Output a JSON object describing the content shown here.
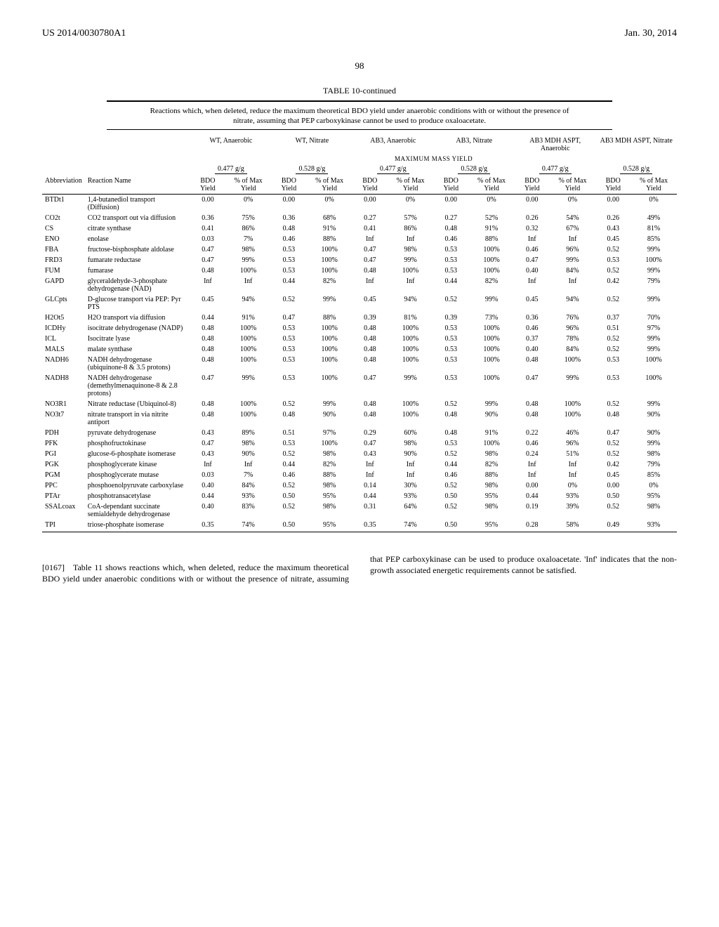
{
  "header": {
    "left": "US 2014/0030780A1",
    "right": "Jan. 30, 2014"
  },
  "page_number": "98",
  "table": {
    "title": "TABLE 10-continued",
    "caption": "Reactions which, when deleted, reduce the maximum theoretical BDO yield under anaerobic conditions with or without the presence of nitrate, assuming that PEP carboxykinase cannot be used to produce oxaloacetate.",
    "condition_groups": [
      "WT, Anaerobic",
      "WT, Nitrate",
      "AB3, Anaerobic",
      "AB3, Nitrate",
      "AB3 MDH ASPT, Anaerobic",
      "AB3 MDH ASPT, Nitrate"
    ],
    "mmy_label": "MAXIMUM MASS YIELD",
    "mmy_values": [
      "0.477 g/g",
      "0.528 g/g",
      "0.477 g/g",
      "0.528 g/g",
      "0.477 g/g",
      "0.528 g/g"
    ],
    "col_pair": [
      "BDO Yield",
      "% of Max Yield"
    ],
    "left_headers": [
      "Abbreviation",
      "Reaction Name"
    ],
    "rows": [
      {
        "abbr": "BTDt1",
        "name": "1,4-butanediol transport (Diffusion)",
        "v": [
          "0.00",
          "0%",
          "0.00",
          "0%",
          "0.00",
          "0%",
          "0.00",
          "0%",
          "0.00",
          "0%",
          "0.00",
          "0%"
        ]
      },
      {
        "abbr": "CO2t",
        "name": "CO2 transport out via diffusion",
        "v": [
          "0.36",
          "75%",
          "0.36",
          "68%",
          "0.27",
          "57%",
          "0.27",
          "52%",
          "0.26",
          "54%",
          "0.26",
          "49%"
        ]
      },
      {
        "abbr": "CS",
        "name": "citrate synthase",
        "v": [
          "0.41",
          "86%",
          "0.48",
          "91%",
          "0.41",
          "86%",
          "0.48",
          "91%",
          "0.32",
          "67%",
          "0.43",
          "81%"
        ]
      },
      {
        "abbr": "ENO",
        "name": "enolase",
        "v": [
          "0.03",
          "7%",
          "0.46",
          "88%",
          "Inf",
          "Inf",
          "0.46",
          "88%",
          "Inf",
          "Inf",
          "0.45",
          "85%"
        ]
      },
      {
        "abbr": "FBA",
        "name": "fructose-bisphosphate aldolase",
        "v": [
          "0.47",
          "98%",
          "0.53",
          "100%",
          "0.47",
          "98%",
          "0.53",
          "100%",
          "0.46",
          "96%",
          "0.52",
          "99%"
        ]
      },
      {
        "abbr": "FRD3",
        "name": "fumarate reductase",
        "v": [
          "0.47",
          "99%",
          "0.53",
          "100%",
          "0.47",
          "99%",
          "0.53",
          "100%",
          "0.47",
          "99%",
          "0.53",
          "100%"
        ]
      },
      {
        "abbr": "FUM",
        "name": "fumarase",
        "v": [
          "0.48",
          "100%",
          "0.53",
          "100%",
          "0.48",
          "100%",
          "0.53",
          "100%",
          "0.40",
          "84%",
          "0.52",
          "99%"
        ]
      },
      {
        "abbr": "GAPD",
        "name": "glyceraldehyde-3-phosphate dehydrogenase (NAD)",
        "v": [
          "Inf",
          "Inf",
          "0.44",
          "82%",
          "Inf",
          "Inf",
          "0.44",
          "82%",
          "Inf",
          "Inf",
          "0.42",
          "79%"
        ]
      },
      {
        "abbr": "GLCpts",
        "name": "D-glucose transport via PEP: Pyr PTS",
        "v": [
          "0.45",
          "94%",
          "0.52",
          "99%",
          "0.45",
          "94%",
          "0.52",
          "99%",
          "0.45",
          "94%",
          "0.52",
          "99%"
        ]
      },
      {
        "abbr": "H2Ot5",
        "name": "H2O transport via diffusion",
        "v": [
          "0.44",
          "91%",
          "0.47",
          "88%",
          "0.39",
          "81%",
          "0.39",
          "73%",
          "0.36",
          "76%",
          "0.37",
          "70%"
        ]
      },
      {
        "abbr": "ICDHy",
        "name": "isocitrate dehydrogenase (NADP)",
        "v": [
          "0.48",
          "100%",
          "0.53",
          "100%",
          "0.48",
          "100%",
          "0.53",
          "100%",
          "0.46",
          "96%",
          "0.51",
          "97%"
        ]
      },
      {
        "abbr": "ICL",
        "name": "Isocitrate lyase",
        "v": [
          "0.48",
          "100%",
          "0.53",
          "100%",
          "0.48",
          "100%",
          "0.53",
          "100%",
          "0.37",
          "78%",
          "0.52",
          "99%"
        ]
      },
      {
        "abbr": "MALS",
        "name": "malate synthase",
        "v": [
          "0.48",
          "100%",
          "0.53",
          "100%",
          "0.48",
          "100%",
          "0.53",
          "100%",
          "0.40",
          "84%",
          "0.52",
          "99%"
        ]
      },
      {
        "abbr": "NADH6",
        "name": "NADH dehydrogenase (ubiquinone-8 & 3.5 protons)",
        "v": [
          "0.48",
          "100%",
          "0.53",
          "100%",
          "0.48",
          "100%",
          "0.53",
          "100%",
          "0.48",
          "100%",
          "0.53",
          "100%"
        ]
      },
      {
        "abbr": "NADH8",
        "name": "NADH dehydrogenase (demethylmenaquinone-8 & 2.8 protons)",
        "v": [
          "0.47",
          "99%",
          "0.53",
          "100%",
          "0.47",
          "99%",
          "0.53",
          "100%",
          "0.47",
          "99%",
          "0.53",
          "100%"
        ]
      },
      {
        "abbr": "NO3R1",
        "name": "Nitrate reductase (Ubiquinol-8)",
        "v": [
          "0.48",
          "100%",
          "0.52",
          "99%",
          "0.48",
          "100%",
          "0.52",
          "99%",
          "0.48",
          "100%",
          "0.52",
          "99%"
        ]
      },
      {
        "abbr": "NO3t7",
        "name": "nitrate transport in via nitrite antiport",
        "v": [
          "0.48",
          "100%",
          "0.48",
          "90%",
          "0.48",
          "100%",
          "0.48",
          "90%",
          "0.48",
          "100%",
          "0.48",
          "90%"
        ]
      },
      {
        "abbr": "PDH",
        "name": "pyruvate dehydrogenase",
        "v": [
          "0.43",
          "89%",
          "0.51",
          "97%",
          "0.29",
          "60%",
          "0.48",
          "91%",
          "0.22",
          "46%",
          "0.47",
          "90%"
        ]
      },
      {
        "abbr": "PFK",
        "name": "phosphofructokinase",
        "v": [
          "0.47",
          "98%",
          "0.53",
          "100%",
          "0.47",
          "98%",
          "0.53",
          "100%",
          "0.46",
          "96%",
          "0.52",
          "99%"
        ]
      },
      {
        "abbr": "PGI",
        "name": "glucose-6-phosphate isomerase",
        "v": [
          "0.43",
          "90%",
          "0.52",
          "98%",
          "0.43",
          "90%",
          "0.52",
          "98%",
          "0.24",
          "51%",
          "0.52",
          "98%"
        ]
      },
      {
        "abbr": "PGK",
        "name": "phosphoglycerate kinase",
        "v": [
          "Inf",
          "Inf",
          "0.44",
          "82%",
          "Inf",
          "Inf",
          "0.44",
          "82%",
          "Inf",
          "Inf",
          "0.42",
          "79%"
        ]
      },
      {
        "abbr": "PGM",
        "name": "phosphoglycerate mutase",
        "v": [
          "0.03",
          "7%",
          "0.46",
          "88%",
          "Inf",
          "Inf",
          "0.46",
          "88%",
          "Inf",
          "Inf",
          "0.45",
          "85%"
        ]
      },
      {
        "abbr": "PPC",
        "name": "phosphoenolpyruvate carboxylase",
        "v": [
          "0.40",
          "84%",
          "0.52",
          "98%",
          "0.14",
          "30%",
          "0.52",
          "98%",
          "0.00",
          "0%",
          "0.00",
          "0%"
        ]
      },
      {
        "abbr": "PTAr",
        "name": "phosphotransacetylase",
        "v": [
          "0.44",
          "93%",
          "0.50",
          "95%",
          "0.44",
          "93%",
          "0.50",
          "95%",
          "0.44",
          "93%",
          "0.50",
          "95%"
        ]
      },
      {
        "abbr": "SSALcoax",
        "name": "CoA-dependant succinate semialdehyde dehydrogenase",
        "v": [
          "0.40",
          "83%",
          "0.52",
          "98%",
          "0.31",
          "64%",
          "0.52",
          "98%",
          "0.19",
          "39%",
          "0.52",
          "98%"
        ]
      },
      {
        "abbr": "TPI",
        "name": "triose-phosphate isomerase",
        "v": [
          "0.35",
          "74%",
          "0.50",
          "95%",
          "0.35",
          "74%",
          "0.50",
          "95%",
          "0.28",
          "58%",
          "0.49",
          "93%"
        ]
      }
    ]
  },
  "paragraph": {
    "num": "[0167]",
    "text": "Table 11 shows reactions which, when deleted, reduce the maximum theoretical BDO yield under anaerobic conditions with or without the presence of nitrate, assuming that PEP carboxykinase can be used to produce oxaloacetate. 'Inf' indicates that the non-growth associated energetic requirements cannot be satisfied."
  }
}
